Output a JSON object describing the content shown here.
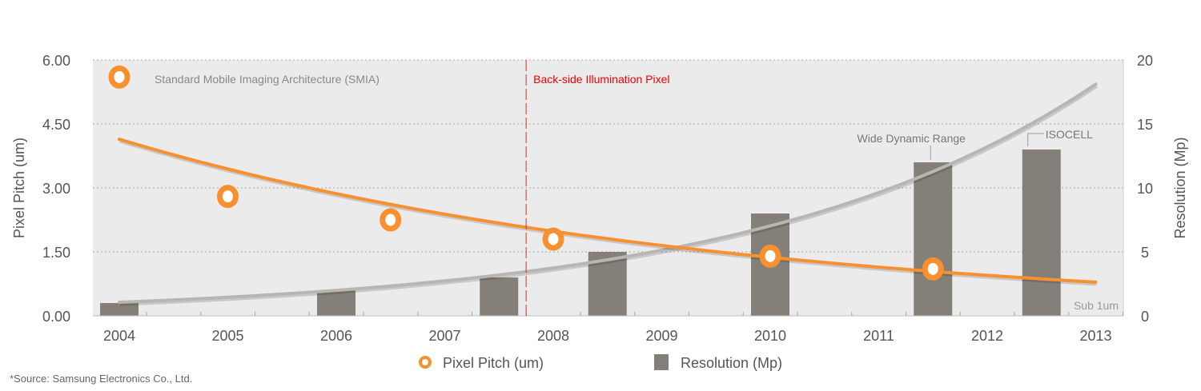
{
  "chart_data": {
    "type": "bar+scatter+line",
    "left_axis": {
      "label": "Pixel Pitch (um)",
      "ylim": [
        0,
        6
      ],
      "ticks": [
        "0.00",
        "1.50",
        "3.00",
        "4.50",
        "6.00"
      ],
      "tick_values": [
        0,
        1.5,
        3,
        4.5,
        6
      ]
    },
    "right_axis": {
      "label": "Resolution (Mp)",
      "ylim": [
        0,
        20
      ],
      "ticks": [
        "0",
        "5",
        "10",
        "15",
        "20"
      ],
      "tick_values": [
        0,
        5,
        10,
        15,
        20
      ]
    },
    "x_ticks": [
      "2004",
      "2005",
      "2006",
      "2007",
      "2008",
      "2009",
      "2010",
      "2011",
      "2012",
      "2013"
    ],
    "xlim": [
      2004,
      2013
    ],
    "grid": true,
    "series": [
      {
        "name": "Pixel Pitch (um)",
        "type": "scatter",
        "axis": "left",
        "color": "#f7902f",
        "x": [
          2004,
          2005,
          2006.5,
          2008,
          2010,
          2011.5
        ],
        "y": [
          5.6,
          2.8,
          2.25,
          1.8,
          1.4,
          1.1
        ]
      },
      {
        "name": "Resolution (Mp)",
        "type": "bar",
        "axis": "right",
        "color": "#857f7a",
        "x": [
          2004,
          2006,
          2007.5,
          2008.5,
          2010,
          2011.5,
          2012.5
        ],
        "y": [
          1,
          2,
          3,
          5,
          8,
          12,
          13
        ]
      },
      {
        "name": "Pixel Pitch trend",
        "type": "line",
        "axis": "left",
        "color": "#f7902f",
        "x": [
          2004,
          2013
        ],
        "y": [
          4.14,
          0.79
        ],
        "curve": "exponential"
      },
      {
        "name": "Resolution trend",
        "type": "line",
        "axis": "right",
        "color": "#b9b5b0",
        "x": [
          2004,
          2013
        ],
        "y": [
          1.06,
          18.1
        ],
        "curve": "exponential"
      }
    ],
    "annotations": {
      "smia": "Standard Mobile Imaging Architecture (SMIA)",
      "bsi": "Back-side Illumination Pixel",
      "bsi_x": 2007.75,
      "wdr": "Wide Dynamic Range",
      "isocell": "ISOCELL",
      "sub1um": "Sub 1um"
    },
    "legend": {
      "placement": "bottom",
      "items": [
        "Pixel Pitch (um)",
        "Resolution (Mp)"
      ]
    },
    "source": "*Source: Samsung Electronics Co., Ltd."
  }
}
